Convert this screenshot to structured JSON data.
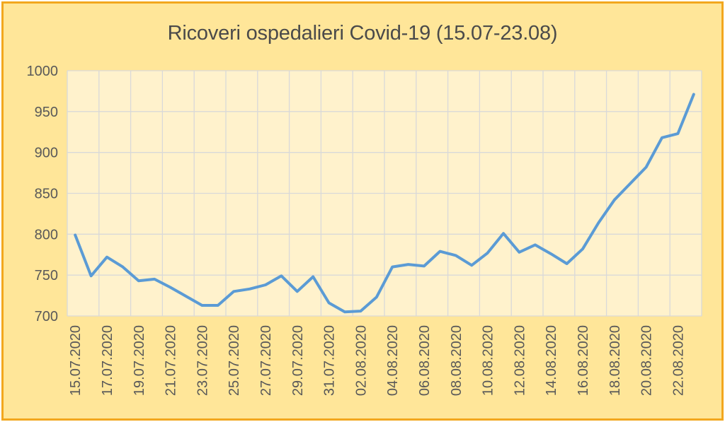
{
  "title": "Ricoveri ospedalieri Covid-19 (15.07-23.08)",
  "colors": {
    "frame_border": "#F2A71E",
    "chart_background": "#FFE699",
    "plot_background": "#FFF2CC",
    "gridline": "#D9D9D9",
    "series_line": "#5B9BD5",
    "tick_text": "#595959",
    "title_text": "#4A4A4A"
  },
  "y_axis": {
    "min": 700,
    "max": 1000,
    "tick_labels": [
      "1000",
      "950",
      "900",
      "850",
      "800",
      "750",
      "700"
    ],
    "tick_values": [
      1000,
      950,
      900,
      850,
      800,
      750,
      700
    ]
  },
  "x_axis": {
    "tick_labels": [
      "15.07.2020",
      "17.07.2020",
      "19.07.2020",
      "21.07.2020",
      "23.07.2020",
      "25.07.2020",
      "27.07.2020",
      "29.07.2020",
      "31.07.2020",
      "02.08.2020",
      "04.08.2020",
      "06.08.2020",
      "08.08.2020",
      "10.08.2020",
      "12.08.2020",
      "14.08.2020",
      "16.08.2020",
      "18.08.2020",
      "20.08.2020",
      "22.08.2020"
    ]
  },
  "chart_data": {
    "type": "line",
    "title": "Ricoveri ospedalieri Covid-19 (15.07-23.08)",
    "xlabel": "",
    "ylabel": "",
    "ylim": [
      700,
      1000
    ],
    "grid": true,
    "legend": false,
    "series_name": "Ricoveri ospedalieri",
    "x": [
      "15.07.2020",
      "16.07.2020",
      "17.07.2020",
      "18.07.2020",
      "19.07.2020",
      "20.07.2020",
      "21.07.2020",
      "22.07.2020",
      "23.07.2020",
      "24.07.2020",
      "25.07.2020",
      "26.07.2020",
      "27.07.2020",
      "28.07.2020",
      "29.07.2020",
      "30.07.2020",
      "31.07.2020",
      "01.08.2020",
      "02.08.2020",
      "03.08.2020",
      "04.08.2020",
      "05.08.2020",
      "06.08.2020",
      "07.08.2020",
      "08.08.2020",
      "09.08.2020",
      "10.08.2020",
      "11.08.2020",
      "12.08.2020",
      "13.08.2020",
      "14.08.2020",
      "15.08.2020",
      "16.08.2020",
      "17.08.2020",
      "18.08.2020",
      "19.08.2020",
      "20.08.2020",
      "21.08.2020",
      "22.08.2020",
      "23.08.2020"
    ],
    "values": [
      799,
      749,
      772,
      760,
      743,
      745,
      735,
      724,
      713,
      713,
      730,
      733,
      738,
      749,
      730,
      748,
      716,
      705,
      706,
      723,
      760,
      763,
      761,
      779,
      774,
      762,
      777,
      801,
      778,
      787,
      776,
      764,
      782,
      814,
      842,
      862,
      882,
      918,
      923,
      971
    ]
  }
}
